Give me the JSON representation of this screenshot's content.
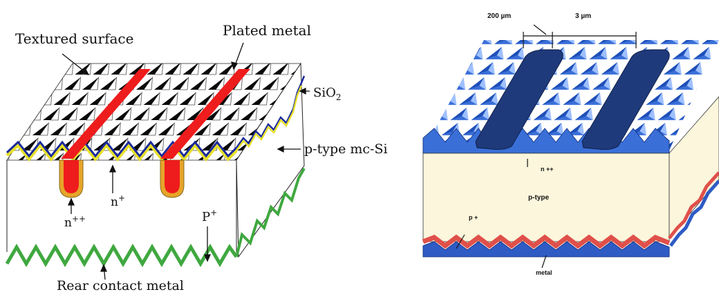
{
  "left_diagram": {
    "labels": {
      "textured_surface": "Textured surface",
      "plated_metal": "Plated metal",
      "sio2_base": "SiO",
      "sio2_sub": "2",
      "p_type": "p-type mc-Si",
      "n_plus_base": "n",
      "n_plus_sup": "+",
      "n_pp_base": "n",
      "n_pp_sup": "++",
      "p_plus_base": "P",
      "p_plus_sup": "+",
      "rear_contact": "Rear contact metal"
    },
    "colors": {
      "finger": "#ee1c1c",
      "finger_outline": "#b8860b",
      "sio2_line": "#1b2a9e",
      "n_plus_layer": "#e6e02a",
      "rear_metal": "#3fa83f",
      "pyramid_dark": "#0a0a0a"
    }
  },
  "right_diagram": {
    "labels": {
      "width_200": "200 µm",
      "spacing_3": "3 µm",
      "n_pp": "n ++",
      "p_type": "p-type",
      "p_plus": "p +",
      "metal": "metal"
    },
    "colors": {
      "texture": "#3a6fd8",
      "finger": "#1f3a7a",
      "bulk": "#fbf6dc",
      "p_plus_layer": "#e0504a",
      "rear_metal": "#2e5bc4"
    }
  }
}
